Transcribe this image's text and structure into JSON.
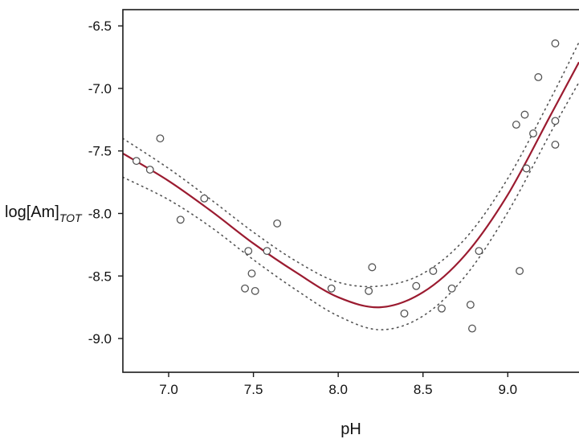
{
  "chart_data": {
    "type": "scatter",
    "title": "",
    "xlabel": "pH",
    "ylabel": "log[Am]",
    "ylabel_subscript": "TOT",
    "xlim": [
      6.73,
      9.42
    ],
    "ylim": [
      -9.27,
      -6.37
    ],
    "xticks": [
      7.0,
      7.5,
      8.0,
      8.5,
      9.0
    ],
    "xtick_labels": [
      "7.0",
      "7.5",
      "8.0",
      "8.5",
      "9.0"
    ],
    "yticks": [
      -6.5,
      -7.0,
      -7.5,
      -8.0,
      -8.5,
      -9.0
    ],
    "ytick_labels": [
      "-6.5",
      "-7.0",
      "-7.5",
      "-8.0",
      "-8.5",
      "-9.0"
    ],
    "grid": false,
    "points": {
      "x": [
        6.81,
        6.89,
        6.95,
        7.07,
        7.21,
        7.45,
        7.47,
        7.49,
        7.51,
        7.58,
        7.64,
        7.96,
        8.18,
        8.2,
        8.39,
        8.46,
        8.56,
        8.61,
        8.67,
        8.78,
        8.79,
        8.83,
        9.05,
        9.07,
        9.1,
        9.11,
        9.15,
        9.18,
        9.28,
        9.28,
        9.28
      ],
      "y": [
        -7.58,
        -7.65,
        -7.4,
        -8.05,
        -7.88,
        -8.6,
        -8.3,
        -8.48,
        -8.62,
        -8.3,
        -8.08,
        -8.6,
        -8.62,
        -8.43,
        -8.8,
        -8.58,
        -8.46,
        -8.76,
        -8.6,
        -8.73,
        -8.92,
        -8.3,
        -7.29,
        -8.46,
        -7.21,
        -7.64,
        -7.36,
        -6.91,
        -6.64,
        -7.26,
        -7.45
      ]
    },
    "fit_curve": {
      "x": [
        6.73,
        7.0,
        7.25,
        7.5,
        7.75,
        8.0,
        8.25,
        8.5,
        8.75,
        9.0,
        9.25,
        9.42
      ],
      "y": [
        -7.52,
        -7.74,
        -7.98,
        -8.24,
        -8.47,
        -8.67,
        -8.75,
        -8.63,
        -8.33,
        -7.85,
        -7.22,
        -6.79
      ],
      "color": "#9b1b30"
    },
    "upper_band": {
      "x": [
        6.73,
        7.0,
        7.25,
        7.5,
        7.75,
        8.0,
        8.25,
        8.5,
        8.75,
        9.0,
        9.25,
        9.42
      ],
      "y": [
        -7.4,
        -7.64,
        -7.89,
        -8.15,
        -8.38,
        -8.55,
        -8.58,
        -8.48,
        -8.2,
        -7.72,
        -7.09,
        -6.63
      ],
      "color": "#555555"
    },
    "lower_band": {
      "x": [
        6.73,
        7.0,
        7.25,
        7.5,
        7.75,
        8.0,
        8.25,
        8.5,
        8.75,
        9.0,
        9.25,
        9.42
      ],
      "y": [
        -7.71,
        -7.89,
        -8.11,
        -8.37,
        -8.61,
        -8.82,
        -8.93,
        -8.82,
        -8.5,
        -7.99,
        -7.36,
        -6.95
      ],
      "color": "#555555"
    },
    "marker_color": "#555555"
  }
}
